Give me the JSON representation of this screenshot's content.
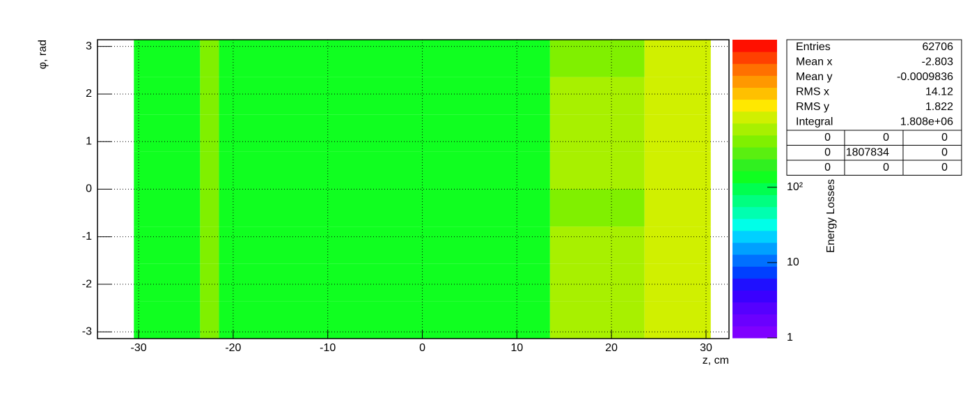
{
  "chart_data": {
    "type": "heatmap",
    "x_label": "z, cm",
    "y_label": "φ, rad",
    "z_label": "Energy Losses",
    "xlim": [
      -34.35,
      32.43
    ],
    "ylim": [
      -3.1416,
      3.1416
    ],
    "xticks": [
      -30,
      -20,
      -10,
      0,
      10,
      20,
      30
    ],
    "yticks": [
      -3,
      -2,
      -1,
      0,
      1,
      2,
      3
    ],
    "zlim": [
      1,
      9100
    ],
    "zticks": [
      1,
      10,
      {
        "value": 100,
        "label": "10²"
      }
    ],
    "log_z": true,
    "grid": true,
    "palette": [
      "#7f00ff",
      "#6a00ff",
      "#5500ff",
      "#3a00ff",
      "#1f10ff",
      "#0040ff",
      "#0070ff",
      "#00a0ff",
      "#00d0ff",
      "#00ffe8",
      "#00ffb0",
      "#00ff80",
      "#00ff50",
      "#10ff20",
      "#30f020",
      "#5aef10",
      "#80f000",
      "#a8f000",
      "#d0f000",
      "#ffe800",
      "#ffc000",
      "#ff9800",
      "#ff7000",
      "#ff4000",
      "#ff1000"
    ],
    "xbins": [
      -30.5,
      -23.5,
      -21.5,
      13.5,
      23.5,
      30.5
    ],
    "ybins": [
      -3.1416,
      -2.3562,
      -1.5708,
      -0.7854,
      0,
      0.7854,
      1.5708,
      2.3562,
      3.1416
    ],
    "values": [
      [
        140,
        430,
        150,
        520,
        780
      ],
      [
        130,
        410,
        140,
        500,
        820
      ],
      [
        135,
        420,
        145,
        510,
        800
      ],
      [
        128,
        400,
        138,
        490,
        760
      ],
      [
        132,
        415,
        142,
        505,
        790
      ],
      [
        138,
        425,
        148,
        515,
        810
      ],
      [
        130,
        405,
        140,
        495,
        770
      ],
      [
        126,
        400,
        136,
        485,
        750
      ]
    ],
    "stats": {
      "rows": [
        [
          "Entries",
          62706
        ],
        [
          "Mean x",
          -2.803
        ],
        [
          "Mean y",
          -0.0009836
        ],
        [
          "RMS x",
          14.12
        ],
        [
          "RMS y",
          1.822
        ],
        [
          "Integral",
          {
            "value": 1808000,
            "label": "1.808e+06"
          }
        ]
      ],
      "overflow": [
        [
          0,
          0,
          0
        ],
        [
          0,
          1807834,
          0
        ],
        [
          0,
          0,
          0
        ]
      ]
    }
  }
}
